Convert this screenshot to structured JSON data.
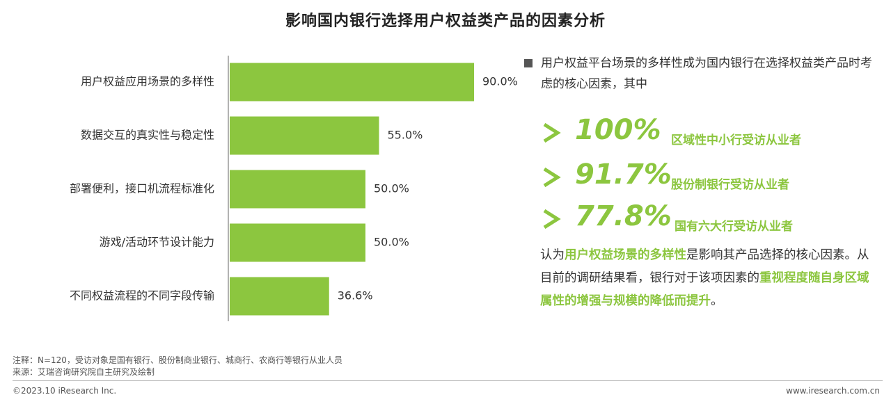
{
  "title": "影响国内银行选择用户权益类产品的因素分析",
  "chart_data": {
    "type": "bar",
    "orientation": "horizontal",
    "categories": [
      "用户权益应用场景的多样性",
      "数据交互的真实性与稳定性",
      "部署便利，接口机流程标准化",
      "游戏/活动环节设计能力",
      "不同权益流程的不同字段传输"
    ],
    "values": [
      90.0,
      55.0,
      50.0,
      50.0,
      36.6
    ],
    "value_labels": [
      "90.0%",
      "55.0%",
      "50.0%",
      "50.0%",
      "36.6%"
    ],
    "xlim": [
      0,
      100
    ],
    "grid": false,
    "bar_color": "#8cc63f"
  },
  "summary": {
    "intro": "用户权益平台场景的多样性成为国内银行在选择权益类产品时考虑的核心因素，其中",
    "stats": [
      {
        "value": "100%",
        "label": "区域性中小行受访从业者"
      },
      {
        "value": "91.7%",
        "label": "股份制银行受访从业者"
      },
      {
        "value": "77.8%",
        "label": "国有六大行受访从业者"
      }
    ],
    "conclusion": {
      "p1": "认为",
      "h1": "用户权益场景的多样性",
      "p2": "是影响其产品选择的核心因素。从目前的调研结果看，银行对于该项因素的",
      "h2": "重视程度随自身区域属性的增强与规模的降低而提升",
      "p3": "。"
    },
    "accent_color": "#8cc63f"
  },
  "notes": {
    "note": "注释：N=120，受访对象是国有银行、股份制商业银行、城商行、农商行等银行从业人员",
    "source": "来源：艾瑞咨询研究院自主研究及绘制"
  },
  "footer": {
    "copyright": "©2023.10 iResearch Inc.",
    "url": "www.iresearch.com.cn"
  }
}
